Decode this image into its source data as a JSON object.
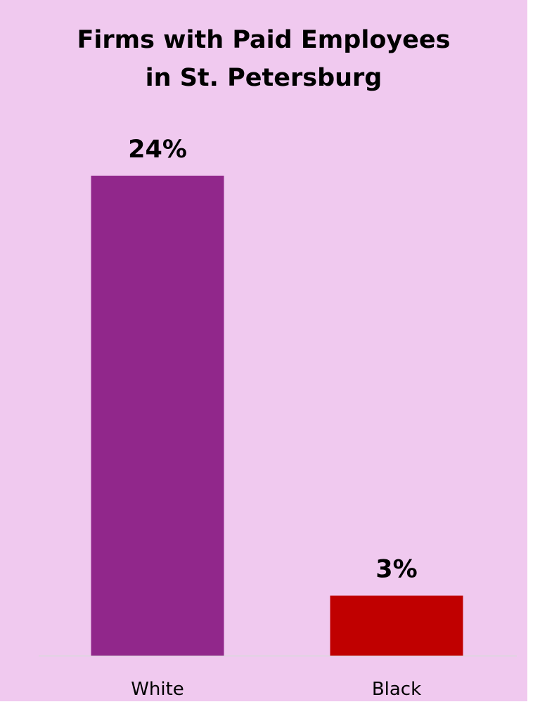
{
  "chart_data": {
    "type": "bar",
    "title": [
      "Firms with Paid Employees",
      "in St. Petersburg"
    ],
    "xlabel": "",
    "ylabel": "",
    "categories": [
      "White",
      "Black"
    ],
    "values": [
      24,
      3
    ],
    "data_labels": [
      "24%",
      "3%"
    ],
    "colors": [
      "#91278b",
      "#c00000"
    ],
    "ylim": [
      0,
      24
    ],
    "grid": false,
    "legend": "none"
  },
  "colors": {
    "background": "#f0c9ef",
    "baseline": "#d9d9d9"
  }
}
